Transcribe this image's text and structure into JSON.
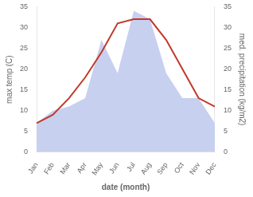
{
  "chart_data": {
    "type": "line",
    "categories": [
      "Jan",
      "Feb",
      "Mar",
      "Apr",
      "May",
      "Jun",
      "Jul",
      "Aug",
      "Sep",
      "Oct",
      "Nov",
      "Dec"
    ],
    "xlabel": "date (month)",
    "ylabel": "max temp (C)",
    "y2label": "med. precipitation (kg/m2)",
    "series": [
      {
        "type": "area",
        "color": "#c8d0f0",
        "axis": "y2",
        "values": [
          7,
          10,
          11,
          13,
          27,
          19,
          34,
          32,
          19,
          13,
          13,
          7
        ]
      },
      {
        "type": "line",
        "color": "#c0392b",
        "values": [
          7,
          9,
          13,
          18,
          24,
          31,
          32,
          32,
          27,
          20,
          13,
          11
        ]
      }
    ],
    "ylim": [
      0,
      35
    ],
    "yticks": [
      0,
      5,
      10,
      15,
      20,
      25,
      30,
      35
    ],
    "y2lim": [
      0,
      35
    ],
    "y2ticks": [
      0,
      5,
      10,
      15,
      20,
      25,
      30,
      35
    ],
    "grid": false
  }
}
